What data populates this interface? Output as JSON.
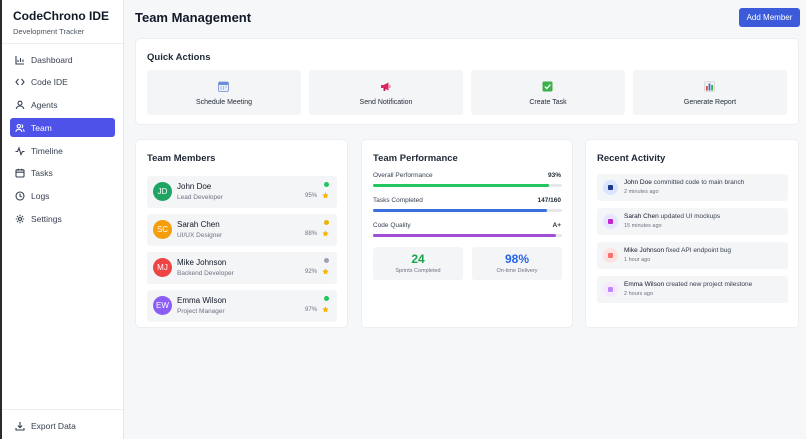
{
  "brand": {
    "title": "CodeChrono IDE",
    "subtitle": "Development Tracker"
  },
  "nav": {
    "items": [
      {
        "label": "Dashboard"
      },
      {
        "label": "Code IDE"
      },
      {
        "label": "Agents"
      },
      {
        "label": "Team"
      },
      {
        "label": "Timeline"
      },
      {
        "label": "Tasks"
      },
      {
        "label": "Logs"
      },
      {
        "label": "Settings"
      }
    ],
    "active": "Team",
    "footer": {
      "label": "Export Data"
    }
  },
  "header": {
    "title": "Team Management",
    "add_button": "Add Member"
  },
  "quick_actions": {
    "title": "Quick Actions",
    "items": [
      {
        "label": "Schedule Meeting",
        "icon": "calendar-icon"
      },
      {
        "label": "Send Notification",
        "icon": "megaphone-icon"
      },
      {
        "label": "Create Task",
        "icon": "checkbox-icon"
      },
      {
        "label": "Generate Report",
        "icon": "bar-chart-icon"
      }
    ]
  },
  "team_members": {
    "title": "Team Members",
    "members": [
      {
        "initials": "JD",
        "name": "John Doe",
        "role": "Lead Developer",
        "score": "95%",
        "status": "online",
        "avatar_color": "#1fa463",
        "status_color": "#22c55e"
      },
      {
        "initials": "SC",
        "name": "Sarah Chen",
        "role": "UI/UX Designer",
        "score": "88%",
        "status": "away",
        "avatar_color": "#f59e0b",
        "status_color": "#eab308"
      },
      {
        "initials": "MJ",
        "name": "Mike Johnson",
        "role": "Backend Developer",
        "score": "92%",
        "status": "offline",
        "avatar_color": "#ef4444",
        "status_color": "#9ca3af"
      },
      {
        "initials": "EW",
        "name": "Emma Wilson",
        "role": "Project Manager",
        "score": "97%",
        "status": "online",
        "avatar_color": "#8b5cf6",
        "status_color": "#22c55e"
      }
    ]
  },
  "team_performance": {
    "title": "Team Performance",
    "metrics": [
      {
        "label": "Overall Performance",
        "value": "93%",
        "fill": 0.93,
        "color": "#22c55e"
      },
      {
        "label": "Tasks Completed",
        "value": "147/160",
        "fill": 0.92,
        "color": "#3b6fdb"
      },
      {
        "label": "Code Quality",
        "value": "A+",
        "fill": 0.97,
        "color": "#a14fd4"
      }
    ],
    "stats": [
      {
        "value": "24",
        "label": "Sprints Completed",
        "color": "#16a34a"
      },
      {
        "value": "98%",
        "label": "On-time Delivery",
        "color": "#2563eb"
      }
    ]
  },
  "recent_activity": {
    "title": "Recent Activity",
    "items": [
      {
        "user": "John Doe",
        "action": "committed code to main branch",
        "time": "2 minutes ago",
        "icon": "code-icon",
        "color": "#dbe4ff",
        "accent": "#1f3a8a"
      },
      {
        "user": "Sarah Chen",
        "action": "updated UI mockups",
        "time": "15 minutes ago",
        "icon": "palette-icon",
        "color": "#e7e5ff",
        "accent": "#c026d3"
      },
      {
        "user": "Mike Johnson",
        "action": "fixed API endpoint bug",
        "time": "1 hour ago",
        "icon": "bug-icon",
        "color": "#fde2e2",
        "accent": "#f87171"
      },
      {
        "user": "Emma Wilson",
        "action": "created new project milestone",
        "time": "2 hours ago",
        "icon": "clipboard-icon",
        "color": "#f5e8ff",
        "accent": "#c084fc"
      }
    ]
  }
}
